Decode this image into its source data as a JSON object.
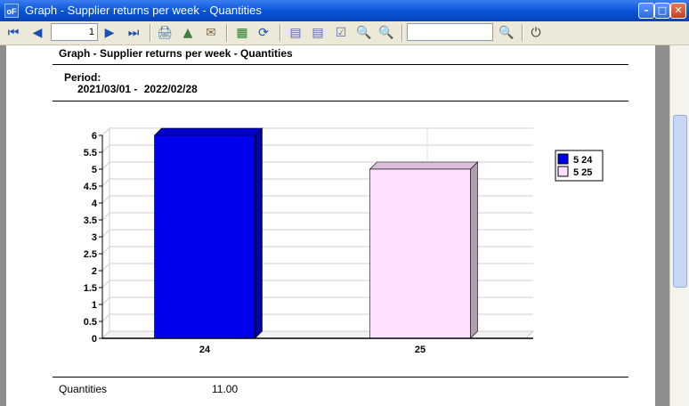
{
  "window": {
    "title": "Graph - Supplier returns per week - Quantities",
    "app_icon_text": "oF"
  },
  "toolbar": {
    "page_number": "1",
    "search_value": ""
  },
  "report": {
    "title": "Graph - Supplier returns per week - Quantities",
    "period_label": "Period:",
    "period_from": "2021/03/01 -",
    "period_to": "2022/02/28",
    "summary_label": "Quantities",
    "summary_value": "11.00"
  },
  "colors": {
    "bar1": "#0000ee",
    "bar2": "#ffe0ff",
    "titlebar": "#0a55d8"
  },
  "chart_data": {
    "type": "bar",
    "categories": [
      "24",
      "25"
    ],
    "values": [
      6,
      5
    ],
    "colors": [
      "#0000ee",
      "#ffe0ff"
    ],
    "legend": [
      "5 24",
      "5 25"
    ],
    "legend_position": "right",
    "yticks": [
      "0",
      "0.5",
      "1",
      "1.5",
      "2",
      "2.5",
      "3",
      "3.5",
      "4",
      "4.5",
      "5",
      "5.5",
      "6"
    ],
    "ylim": [
      0,
      6
    ],
    "grid": true,
    "title": "",
    "xlabel": "",
    "ylabel": ""
  }
}
